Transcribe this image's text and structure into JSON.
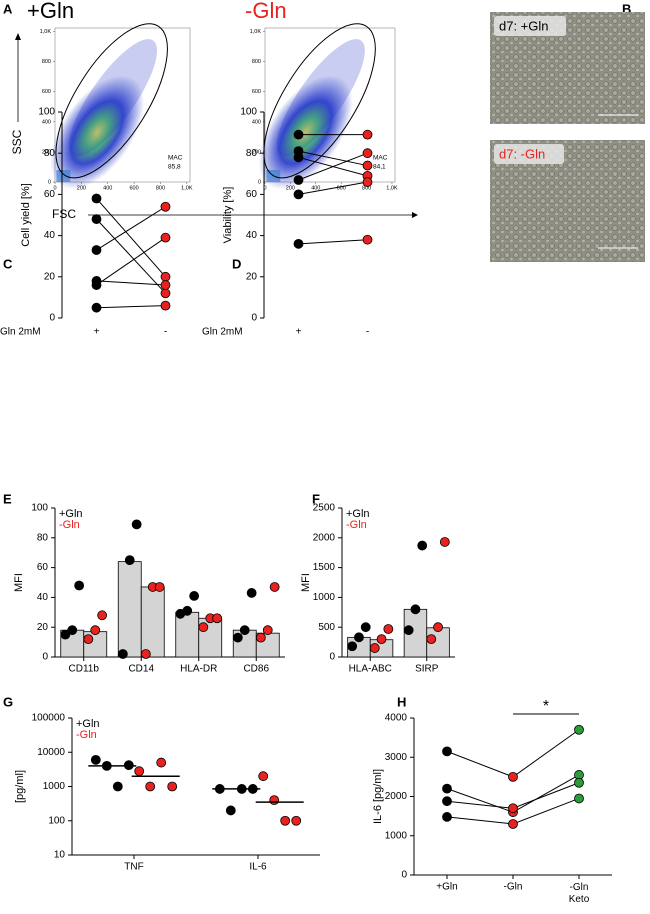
{
  "panel_letters": [
    "A",
    "B",
    "C",
    "D",
    "E",
    "F",
    "G",
    "H"
  ],
  "microscopy": {
    "labels": [
      "d7: +Gln",
      "d7: -Gln"
    ]
  },
  "chart_data": [
    {
      "type": "flow",
      "title": "+Gln",
      "color": "#000000",
      "xlabel": "FSC",
      "ylabel": "SSC",
      "xlim": [
        0,
        1024
      ],
      "ylim": [
        0,
        1024
      ],
      "xticks": [
        0,
        200,
        400,
        600,
        800,
        {
          "value": 1000,
          "label": "1,0K"
        }
      ],
      "yticks": [
        0,
        200,
        400,
        600,
        800,
        {
          "value": 1000,
          "label": "1,0K"
        }
      ],
      "gate": {
        "name": "MAC",
        "values": [
          85.8
        ],
        "value_labels": [
          "85,8"
        ]
      }
    },
    {
      "type": "flow",
      "title": "-Gln",
      "color": "#e8221f",
      "xlim": [
        0,
        1024
      ],
      "ylim": [
        0,
        1024
      ],
      "xticks": [
        0,
        200,
        400,
        600,
        800,
        {
          "value": 1000,
          "label": "1,0K"
        }
      ],
      "yticks": [
        0,
        200,
        400,
        600,
        800,
        {
          "value": 1000,
          "label": "1,0K"
        }
      ],
      "gate": {
        "name": "MAC",
        "values": [
          84.1
        ],
        "value_labels": [
          "84,1"
        ]
      }
    },
    {
      "type": "paired",
      "ylabel": "Cell yield [%]",
      "factor_label": "Gln 2mM",
      "categories": [
        "+",
        "-"
      ],
      "colors": [
        "#000000",
        "#e8221f"
      ],
      "ylim": [
        0,
        100
      ],
      "yticks": [
        0,
        20,
        40,
        60,
        80,
        100
      ],
      "series": [
        {
          "values": [
            58,
            20
          ]
        },
        {
          "values": [
            48,
            12
          ]
        },
        {
          "values": [
            33,
            54
          ]
        },
        {
          "values": [
            18,
            16
          ]
        },
        {
          "values": [
            16,
            39
          ]
        },
        {
          "values": [
            5,
            6
          ]
        }
      ]
    },
    {
      "type": "paired",
      "ylabel": "Viability [%]",
      "factor_label": "Gln 2mM",
      "categories": [
        "+",
        "-"
      ],
      "colors": [
        "#000000",
        "#e8221f"
      ],
      "ylim": [
        0,
        100
      ],
      "yticks": [
        0,
        20,
        40,
        60,
        80,
        100
      ],
      "series": [
        {
          "values": [
            89,
            89
          ]
        },
        {
          "values": [
            81,
            74
          ]
        },
        {
          "values": [
            78,
            69
          ]
        },
        {
          "values": [
            67,
            80
          ]
        },
        {
          "values": [
            60,
            66
          ]
        },
        {
          "values": [
            36,
            38
          ]
        }
      ]
    },
    {
      "type": "bar_dots",
      "ylabel": "MFI",
      "categories": [
        "CD11b",
        "CD14",
        "HLA-DR",
        "CD86"
      ],
      "ylim": [
        0,
        100
      ],
      "yticks": [
        0,
        20,
        40,
        60,
        80,
        100
      ],
      "bar_color": "#d4d4d4",
      "series": [
        {
          "name": "+Gln",
          "color": "#000000",
          "values": [
            18,
            64,
            30,
            18
          ],
          "points": [
            [
              15,
              18,
              48
            ],
            [
              2,
              65,
              89
            ],
            [
              29,
              31,
              41
            ],
            [
              13,
              18,
              43
            ]
          ]
        },
        {
          "name": "-Gln",
          "color": "#e8221f",
          "values": [
            17,
            47,
            26,
            16
          ],
          "points": [
            [
              12,
              18,
              28
            ],
            [
              2,
              47,
              47
            ],
            [
              20,
              26,
              26
            ],
            [
              13,
              18,
              47
            ]
          ]
        }
      ]
    },
    {
      "type": "bar_dots",
      "ylabel": "MFI",
      "categories": [
        "HLA-ABC",
        "SIRP"
      ],
      "ylim": [
        0,
        2500
      ],
      "yticks": [
        0,
        500,
        1000,
        1500,
        2000,
        2500
      ],
      "bar_color": "#d4d4d4",
      "series": [
        {
          "name": "+Gln",
          "color": "#000000",
          "values": [
            330,
            800
          ],
          "points": [
            [
              180,
              330,
              500
            ],
            [
              450,
              800,
              1870
            ]
          ]
        },
        {
          "name": "-Gln",
          "color": "#e8221f",
          "values": [
            290,
            490
          ],
          "points": [
            [
              150,
              300,
              470
            ],
            [
              300,
              500,
              1930
            ]
          ]
        }
      ]
    },
    {
      "type": "dots_line",
      "ylabel": "[pg/ml]",
      "log_scale": true,
      "categories": [
        "TNF",
        "IL-6"
      ],
      "ylim": [
        10,
        100000
      ],
      "yticks": [
        10,
        100,
        1000,
        10000,
        100000
      ],
      "series": [
        {
          "name": "+Gln",
          "color": "#000000",
          "values": [
            4000,
            850
          ],
          "points": [
            [
              6000,
              4000,
              1000,
              4200
            ],
            [
              850,
              200,
              850,
              850
            ]
          ]
        },
        {
          "name": "-Gln",
          "color": "#e8221f",
          "values": [
            2000,
            350
          ],
          "points": [
            [
              2800,
              1000,
              5000,
              1000
            ],
            [
              2000,
              400,
              100,
              100
            ]
          ]
        }
      ]
    },
    {
      "type": "paired",
      "ylabel": "IL-6 [pg/ml]",
      "categories": [
        "+Gln",
        "-Gln",
        "-Gln\nKeto"
      ],
      "colors": [
        "#000000",
        "#e8221f",
        "#2a9d3a"
      ],
      "annotation": "*",
      "ylim": [
        0,
        4000
      ],
      "yticks": [
        0,
        1000,
        2000,
        3000,
        4000
      ],
      "series": [
        {
          "values": [
            3150,
            2500,
            3700
          ]
        },
        {
          "values": [
            2200,
            1600,
            2550
          ]
        },
        {
          "values": [
            1880,
            1700,
            2350
          ]
        },
        {
          "values": [
            1480,
            1300,
            1950
          ]
        }
      ]
    }
  ]
}
